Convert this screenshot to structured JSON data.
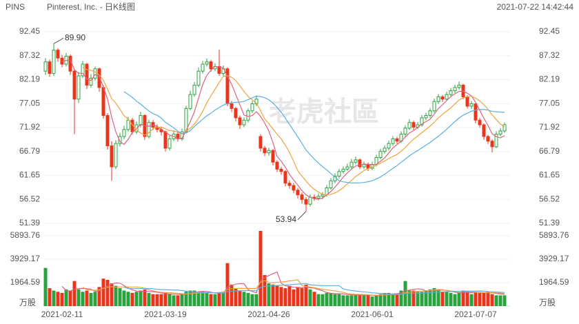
{
  "chart_data": {
    "type": "candlestick",
    "symbol": "PINS",
    "title": "Pinterest, Inc. - 日K线图",
    "timestamp": "2021-07-22 14:42:44",
    "watermark": "老虎社區",
    "volume_unit": "万股",
    "categories": [
      null,
      null,
      null,
      null,
      "2021-02-11",
      null,
      null,
      null,
      null,
      null,
      null,
      null,
      null,
      null,
      null,
      null,
      null,
      null,
      null,
      null,
      null,
      null,
      null,
      null,
      null,
      null,
      null,
      null,
      null,
      "2021-03-19",
      null,
      null,
      null,
      null,
      null,
      null,
      null,
      null,
      null,
      null,
      null,
      null,
      null,
      null,
      null,
      null,
      null,
      null,
      null,
      null,
      null,
      null,
      null,
      null,
      "2021-04-26",
      null,
      null,
      null,
      null,
      null,
      null,
      null,
      null,
      null,
      null,
      null,
      null,
      null,
      null,
      null,
      null,
      null,
      null,
      null,
      null,
      null,
      null,
      null,
      null,
      "2021-06-01",
      null,
      null,
      null,
      null,
      null,
      null,
      null,
      null,
      null,
      null,
      null,
      null,
      null,
      null,
      null,
      null,
      null,
      null,
      null,
      null,
      null,
      null,
      null,
      null,
      "2021-07-07",
      null,
      null,
      null,
      null,
      null,
      null,
      null
    ],
    "open": [
      84.0,
      86.0,
      83.5,
      88.5,
      86.8,
      85.5,
      87.2,
      84.0,
      78.0,
      83.0,
      85.5,
      81.0,
      82.5,
      84.5,
      80.5,
      74.5,
      68.0,
      63.5,
      68.5,
      70.0,
      71.5,
      73.5,
      71.0,
      72.5,
      74.5,
      70.0,
      73.0,
      72.0,
      71.5,
      71.0,
      67.5,
      69.5,
      70.5,
      69.5,
      71.0,
      76.0,
      79.0,
      81.0,
      84.0,
      85.5,
      86.0,
      84.5,
      85.0,
      83.5,
      84.5,
      77.0,
      76.0,
      74.0,
      72.5,
      73.5,
      75.5,
      77.0,
      70.0,
      67.5,
      66.5,
      67.0,
      64.5,
      63.0,
      62.5,
      60.0,
      59.5,
      58.5,
      57.5,
      56.5,
      55.5,
      57.0,
      56.8,
      57.2,
      57.5,
      59.0,
      60.5,
      61.5,
      62.5,
      63.0,
      63.5,
      64.5,
      65.0,
      63.5,
      64.0,
      63.2,
      64.0,
      65.5,
      66.8,
      67.5,
      68.5,
      69.5,
      69.0,
      70.5,
      71.8,
      73.0,
      72.0,
      72.5,
      74.0,
      74.5,
      75.5,
      77.5,
      78.5,
      78.0,
      79.0,
      79.8,
      80.5,
      81.0,
      78.5,
      76.5,
      77.0,
      73.5,
      72.5,
      70.0,
      69.0,
      67.8,
      70.5,
      71.2
    ],
    "high": [
      86.8,
      86.5,
      89.9,
      88.9,
      87.5,
      87.9,
      87.6,
      84.5,
      83.8,
      86.2,
      85.8,
      83.4,
      85.0,
      84.8,
      81.0,
      75.0,
      69.0,
      69.2,
      70.8,
      72.3,
      74.2,
      74.0,
      73.2,
      75.3,
      74.8,
      73.6,
      73.5,
      72.6,
      72.0,
      71.3,
      70.2,
      71.2,
      71.0,
      71.7,
      76.6,
      79.8,
      81.7,
      84.8,
      86.2,
      86.7,
      86.4,
      85.7,
      88.6,
      85.2,
      84.8,
      77.6,
      76.4,
      74.5,
      74.1,
      76.0,
      77.6,
      78.8,
      70.5,
      68.0,
      67.6,
      67.3,
      64.9,
      63.5,
      62.8,
      60.6,
      60.0,
      59.0,
      58.0,
      57.0,
      57.6,
      57.6,
      57.8,
      58.1,
      59.6,
      61.1,
      62.1,
      63.1,
      63.6,
      64.2,
      65.2,
      65.7,
      65.3,
      64.6,
      64.4,
      64.6,
      66.1,
      67.4,
      68.1,
      69.1,
      70.1,
      69.9,
      71.1,
      72.4,
      73.7,
      73.4,
      73.1,
      74.6,
      75.1,
      76.1,
      78.1,
      79.1,
      78.9,
      79.6,
      80.4,
      81.1,
      81.8,
      81.3,
      78.9,
      77.6,
      77.3,
      74.0,
      72.8,
      70.4,
      69.4,
      71.1,
      71.8,
      73.0
    ],
    "low": [
      83.2,
      82.8,
      83.0,
      86.0,
      84.8,
      85.0,
      83.2,
      70.5,
      77.2,
      82.5,
      80.2,
      80.5,
      82.0,
      79.6,
      73.8,
      67.2,
      60.5,
      63.0,
      67.8,
      69.4,
      71.0,
      70.4,
      70.5,
      72.0,
      69.3,
      69.6,
      71.4,
      70.9,
      70.2,
      66.8,
      67.0,
      69.0,
      68.9,
      69.1,
      70.8,
      75.6,
      78.5,
      80.6,
      83.5,
      85.0,
      83.9,
      84.0,
      83.0,
      83.0,
      76.5,
      75.2,
      73.2,
      71.6,
      72.0,
      73.0,
      75.0,
      76.5,
      66.8,
      65.8,
      65.9,
      63.8,
      62.4,
      61.8,
      59.3,
      58.8,
      57.8,
      56.7,
      55.6,
      53.94,
      55.0,
      56.2,
      56.3,
      56.6,
      57.1,
      58.6,
      60.0,
      61.0,
      62.0,
      62.6,
      63.0,
      64.0,
      63.0,
      63.0,
      62.6,
      62.8,
      63.6,
      65.1,
      66.3,
      67.0,
      68.0,
      68.4,
      68.6,
      70.0,
      71.4,
      71.4,
      71.6,
      72.1,
      73.5,
      74.0,
      75.1,
      77.0,
      77.4,
      77.6,
      78.6,
      79.3,
      80.0,
      78.0,
      76.0,
      75.9,
      72.8,
      71.9,
      69.3,
      68.4,
      66.6,
      67.5,
      70.0,
      70.8
    ],
    "close": [
      86.0,
      83.5,
      88.5,
      86.8,
      85.5,
      87.2,
      84.0,
      78.0,
      83.0,
      85.5,
      81.0,
      82.5,
      84.5,
      80.5,
      74.5,
      68.0,
      63.5,
      68.5,
      70.0,
      71.5,
      73.5,
      71.0,
      72.5,
      74.5,
      70.0,
      73.0,
      72.0,
      71.5,
      71.0,
      67.5,
      69.5,
      70.5,
      69.5,
      71.0,
      76.0,
      79.0,
      81.0,
      84.0,
      85.5,
      86.0,
      84.5,
      85.0,
      83.5,
      84.5,
      77.0,
      76.0,
      74.0,
      72.5,
      73.5,
      75.5,
      77.0,
      78.0,
      67.5,
      66.5,
      67.0,
      64.5,
      63.0,
      62.5,
      60.0,
      59.5,
      58.5,
      57.5,
      56.5,
      55.5,
      57.0,
      56.8,
      57.2,
      57.5,
      59.0,
      60.5,
      61.5,
      62.5,
      63.0,
      63.5,
      64.5,
      65.0,
      63.5,
      64.0,
      63.2,
      64.0,
      65.5,
      66.8,
      67.5,
      68.5,
      69.5,
      69.0,
      70.5,
      71.8,
      73.0,
      72.0,
      72.5,
      74.0,
      74.5,
      75.5,
      77.5,
      78.5,
      78.0,
      79.0,
      79.8,
      80.5,
      81.0,
      78.5,
      76.5,
      77.0,
      73.5,
      72.5,
      70.0,
      69.0,
      67.8,
      70.5,
      71.2,
      72.5
    ],
    "volume": [
      3200,
      1500,
      1300,
      1200,
      1100,
      1400,
      1300,
      2100,
      1400,
      1200,
      1300,
      1100,
      1200,
      1600,
      2300,
      2200,
      1900,
      1700,
      1500,
      1300,
      1200,
      1100,
      1200,
      1300,
      1400,
      1100,
      1000,
      1000,
      1000,
      1100,
      1000,
      900,
      900,
      1000,
      1200,
      1300,
      1300,
      1200,
      1200,
      1100,
      1000,
      1000,
      1100,
      1200,
      3600,
      1800,
      1500,
      1300,
      1200,
      1100,
      1000,
      1000,
      6300,
      2600,
      1900,
      1800,
      1700,
      1600,
      1500,
      1700,
      1400,
      1600,
      1500,
      1800,
      1400,
      1200,
      1000,
      1000,
      1100,
      1100,
      1000,
      1000,
      900,
      900,
      900,
      1000,
      900,
      900,
      900,
      800,
      900,
      1000,
      1100,
      1100,
      1000,
      1000,
      1300,
      2100,
      1300,
      1300,
      1200,
      1200,
      1300,
      1400,
      1500,
      1300,
      1200,
      1200,
      1100,
      1000,
      1100,
      1300,
      1200,
      1000,
      1200,
      1100,
      1100,
      1200,
      1000,
      900,
      900,
      900
    ],
    "ylim": [
      51.39,
      92.45
    ],
    "yticks": [
      92.45,
      87.32,
      82.19,
      77.05,
      71.92,
      66.79,
      61.65,
      56.52,
      51.39
    ],
    "vlim": [
      0,
      6300
    ],
    "vticks": [
      5893.76,
      3929.17,
      1964.59
    ],
    "annotations": [
      {
        "value": 89.9,
        "label": "89.90"
      },
      {
        "value": 53.94,
        "label": "53.94"
      }
    ],
    "up_color": "#2aa33f",
    "down_color": "#e8361c",
    "ma_periods": [
      5,
      10,
      20
    ],
    "ma_colors": [
      "#e0607a",
      "#f0a23c",
      "#5aaee6"
    ],
    "grid": true
  }
}
